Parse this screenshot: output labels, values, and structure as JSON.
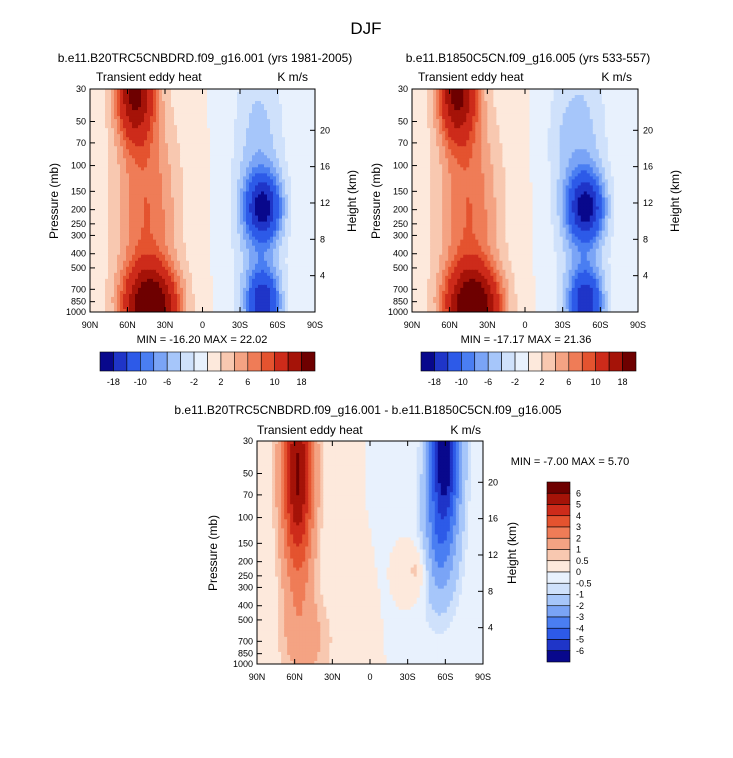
{
  "figure_title": "DJF",
  "colors": {
    "scale_main": [
      "#08088c",
      "#1f35c8",
      "#2d5ae8",
      "#4a7ef2",
      "#7aa4f6",
      "#a6c6fa",
      "#cfe1fb",
      "#e8f1fd",
      "#fde9dc",
      "#f8c8b0",
      "#f4a383",
      "#ef7c57",
      "#e4532f",
      "#cd2b1a",
      "#a51308",
      "#6e0000"
    ],
    "scale_diff": [
      "#08088c",
      "#1f35c8",
      "#2d5ae8",
      "#4a7ef2",
      "#7aa4f6",
      "#a6c6fa",
      "#cfe1fb",
      "#e8f1fd",
      "#fde9dc",
      "#f8c8b0",
      "#f4a383",
      "#ef7c57",
      "#e4532f",
      "#cd2b1a",
      "#a51308",
      "#6e0000"
    ]
  },
  "chart_data": [
    {
      "type": "heatmap",
      "title": "b.e11.B20TRC5CNBDRD.f09_g16.001 (yrs 1981-2005)",
      "subtitle_left": "Transient eddy heat",
      "subtitle_right": "K m/s",
      "xlabel": "",
      "ylabel": "Pressure (mb)",
      "ylabel_right": "Height (km)",
      "x_ticks": [
        "90N",
        "60N",
        "30N",
        "0",
        "30S",
        "60S",
        "90S"
      ],
      "y_ticks": [
        "30",
        "50",
        "70",
        "100",
        "150",
        "200",
        "250",
        "300",
        "400",
        "500",
        "700",
        "850",
        "1000"
      ],
      "y2_ticks": [
        "20",
        "16",
        "12",
        "8",
        "4"
      ],
      "min_max_label": "MIN = -16.20   MAX =  22.02",
      "min": -16.2,
      "max": 22.02,
      "colorbar_labels": [
        "-18",
        "-10",
        "-6",
        "-2",
        "2",
        "6",
        "10",
        "18"
      ]
    },
    {
      "type": "heatmap",
      "title": "b.e11.B1850C5CN.f09_g16.005 (yrs 533-557)",
      "subtitle_left": "Transient eddy heat",
      "subtitle_right": "K m/s",
      "xlabel": "",
      "ylabel": "Pressure (mb)",
      "ylabel_right": "Height (km)",
      "x_ticks": [
        "90N",
        "60N",
        "30N",
        "0",
        "30S",
        "60S",
        "90S"
      ],
      "y_ticks": [
        "30",
        "50",
        "70",
        "100",
        "150",
        "200",
        "250",
        "300",
        "400",
        "500",
        "700",
        "850",
        "1000"
      ],
      "y2_ticks": [
        "20",
        "16",
        "12",
        "8",
        "4"
      ],
      "min_max_label": "MIN = -17.17   MAX =  21.36",
      "min": -17.17,
      "max": 21.36,
      "colorbar_labels": [
        "-18",
        "-10",
        "-6",
        "-2",
        "2",
        "6",
        "10",
        "18"
      ]
    },
    {
      "type": "heatmap",
      "title": "b.e11.B20TRC5CNBDRD.f09_g16.001 - b.e11.B1850C5CN.f09_g16.005",
      "subtitle_left": "Transient eddy heat",
      "subtitle_right": "K m/s",
      "xlabel": "",
      "ylabel": "Pressure (mb)",
      "ylabel_right": "Height (km)",
      "x_ticks": [
        "90N",
        "60N",
        "30N",
        "0",
        "30S",
        "60S",
        "90S"
      ],
      "y_ticks": [
        "30",
        "50",
        "70",
        "100",
        "150",
        "200",
        "250",
        "300",
        "400",
        "500",
        "700",
        "850",
        "1000"
      ],
      "y2_ticks": [
        "20",
        "16",
        "12",
        "8",
        "4"
      ],
      "min_max_label": "MIN = -7.00   MAX =   5.70",
      "min": -7.0,
      "max": 5.7,
      "colorbar_labels": [
        "6",
        "5",
        "4",
        "3",
        "2",
        "1",
        "0.5",
        "0",
        "-0.5",
        "-1",
        "-2",
        "-3",
        "-4",
        "-5",
        "-6"
      ]
    }
  ]
}
